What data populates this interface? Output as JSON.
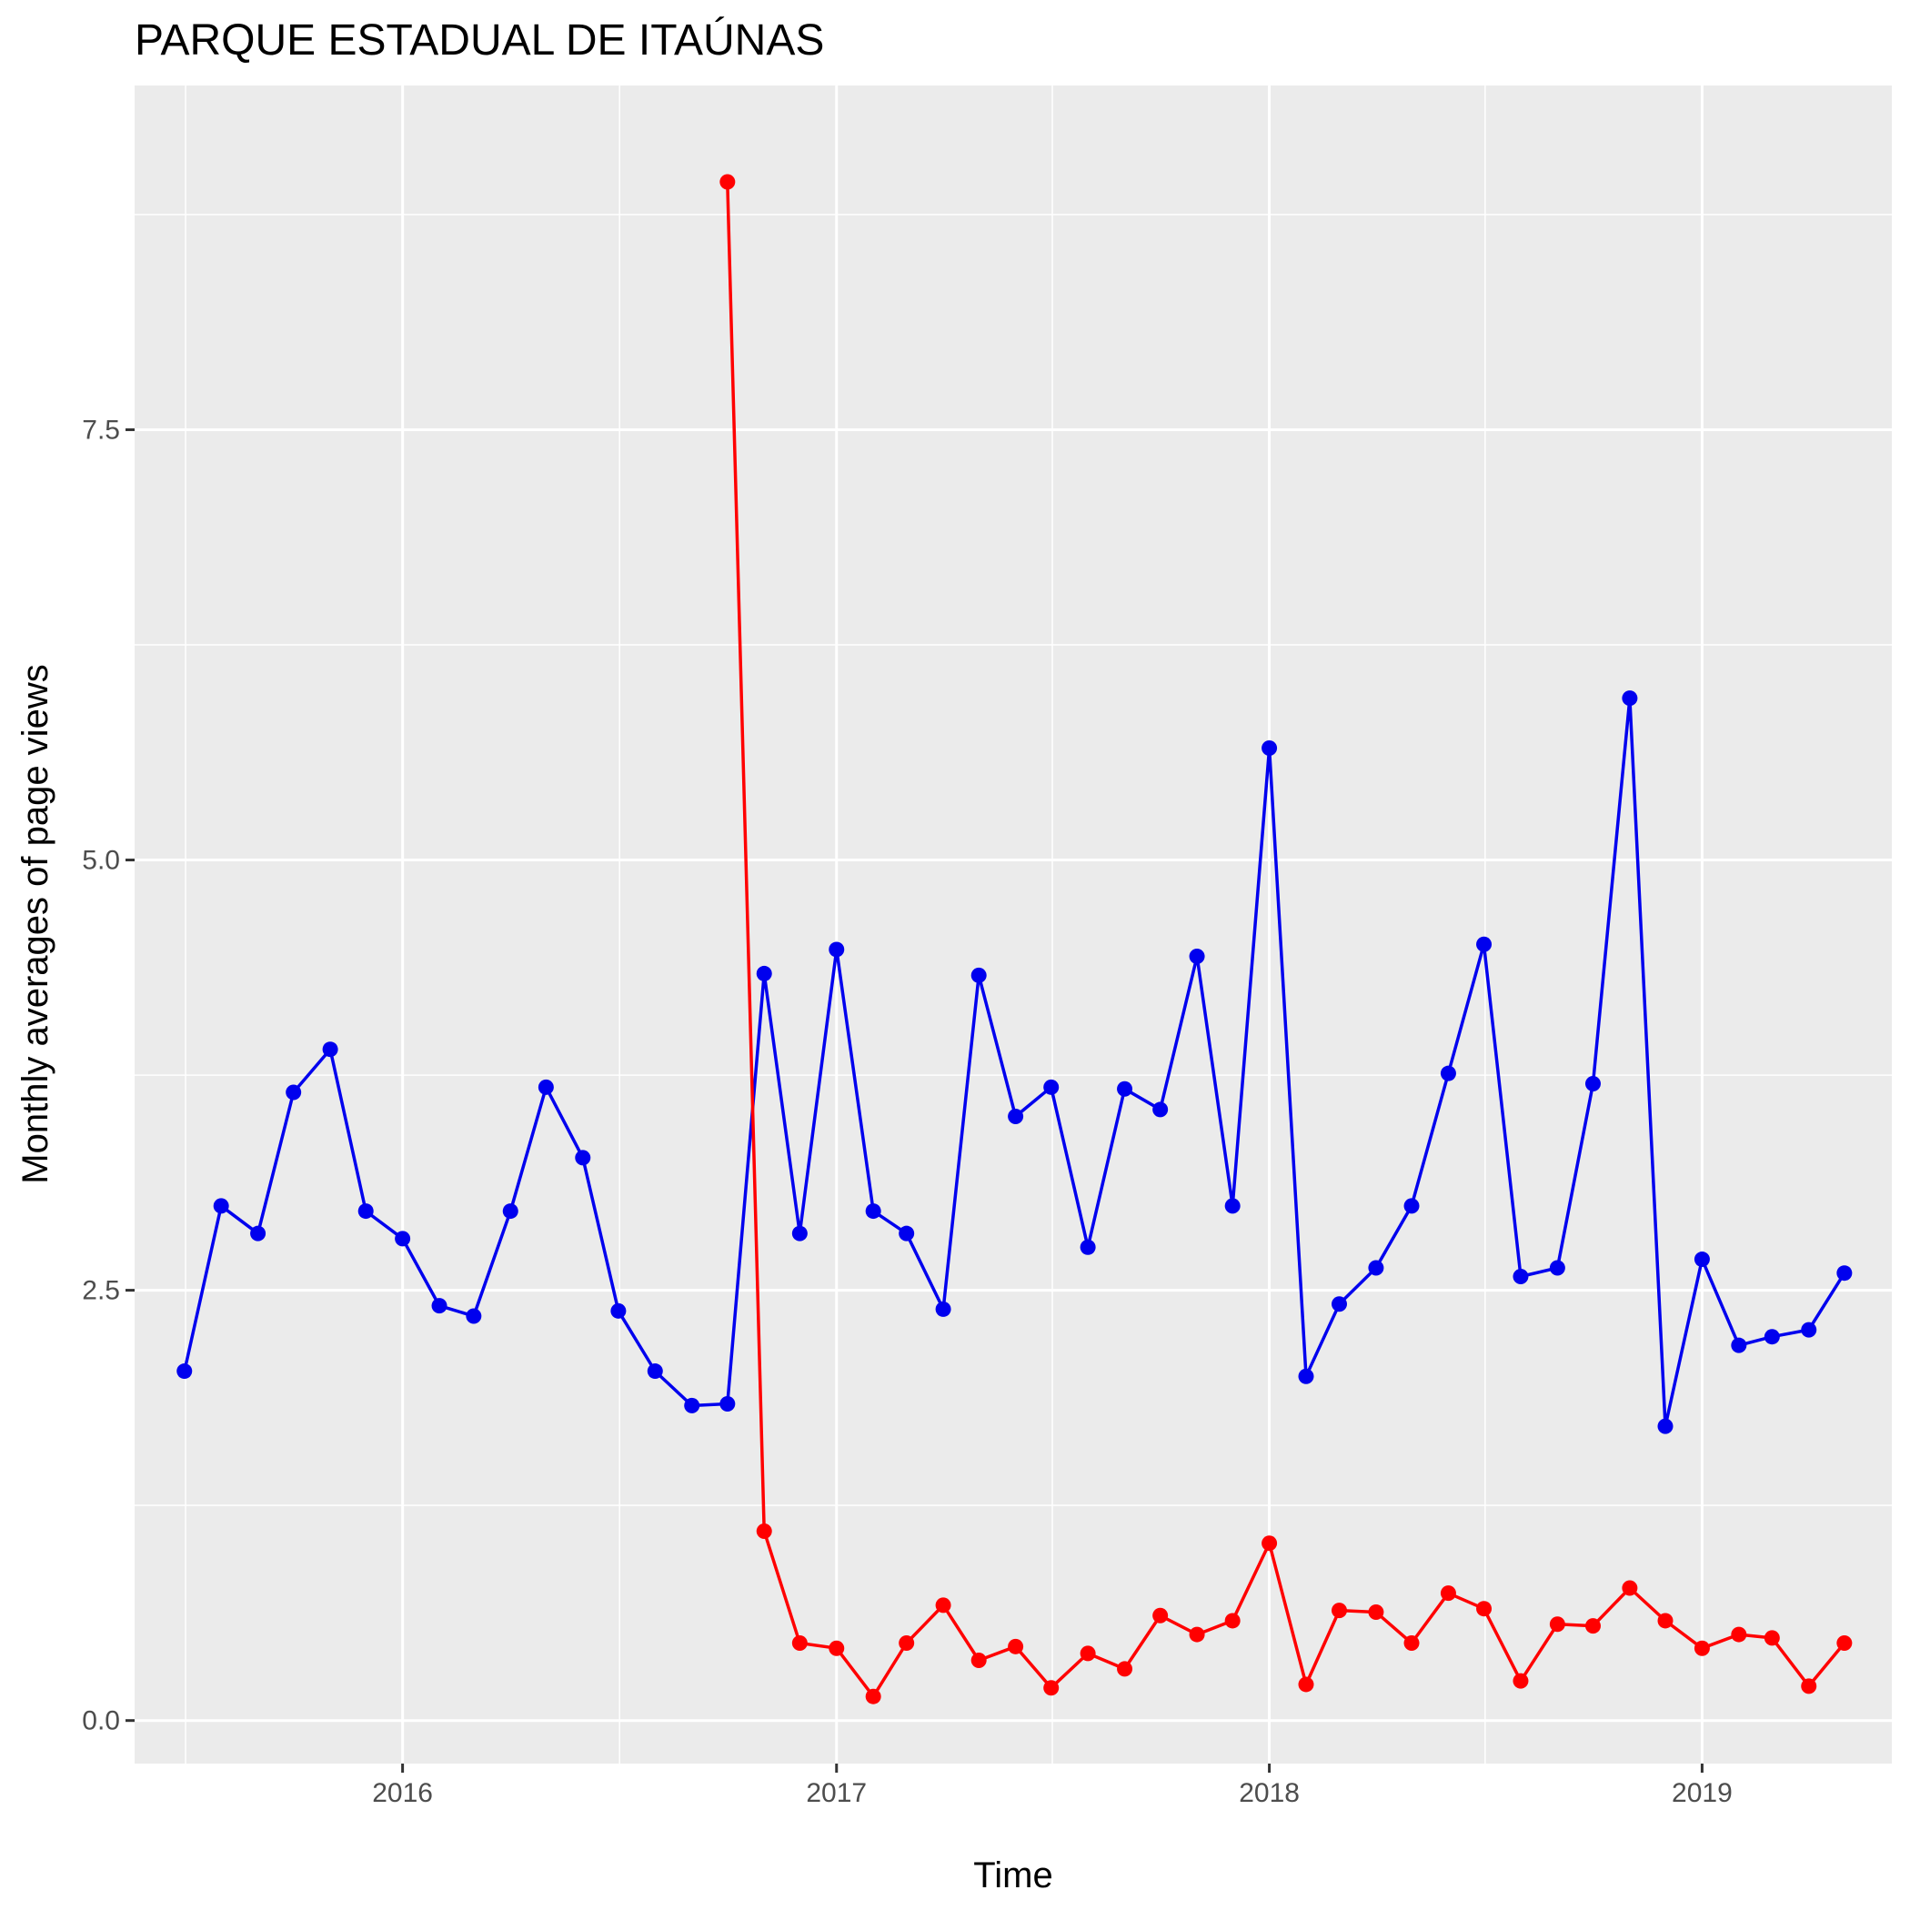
{
  "chart_data": {
    "type": "line",
    "title": "PARQUE ESTADUAL DE ITAÚNAS",
    "xlabel": "Time",
    "ylabel": "Monthly averages of page views",
    "x_ticks": [
      "2016",
      "2017",
      "2018",
      "2019"
    ],
    "y_ticks": [
      "0.0",
      "2.5",
      "5.0",
      "7.5"
    ],
    "xlim": [
      "2015-05-20",
      "2019-06-10"
    ],
    "ylim": [
      -0.25,
      9.5
    ],
    "grid": true,
    "legend": "none",
    "series": [
      {
        "color": "#0000ee",
        "points": [
          [
            "2015-07-01",
            2.03
          ],
          [
            "2015-08-01",
            2.99
          ],
          [
            "2015-09-01",
            2.83
          ],
          [
            "2015-10-01",
            3.65
          ],
          [
            "2015-11-01",
            3.9
          ],
          [
            "2015-12-01",
            2.96
          ],
          [
            "2016-01-01",
            2.8
          ],
          [
            "2016-02-01",
            2.41
          ],
          [
            "2016-03-01",
            2.35
          ],
          [
            "2016-04-01",
            2.96
          ],
          [
            "2016-05-01",
            3.68
          ],
          [
            "2016-06-01",
            3.27
          ],
          [
            "2016-07-01",
            2.38
          ],
          [
            "2016-08-01",
            2.03
          ],
          [
            "2016-09-01",
            1.83
          ],
          [
            "2016-10-01",
            1.84
          ],
          [
            "2016-11-01",
            4.34
          ],
          [
            "2016-12-01",
            2.83
          ],
          [
            "2017-01-01",
            4.48
          ],
          [
            "2017-02-01",
            2.96
          ],
          [
            "2017-03-01",
            2.83
          ],
          [
            "2017-04-01",
            2.39
          ],
          [
            "2017-05-01",
            4.33
          ],
          [
            "2017-06-01",
            3.51
          ],
          [
            "2017-07-01",
            3.68
          ],
          [
            "2017-08-01",
            2.75
          ],
          [
            "2017-09-01",
            3.67
          ],
          [
            "2017-10-01",
            3.55
          ],
          [
            "2017-11-01",
            4.44
          ],
          [
            "2017-12-01",
            2.99
          ],
          [
            "2018-01-01",
            5.65
          ],
          [
            "2018-02-01",
            2.0
          ],
          [
            "2018-03-01",
            2.42
          ],
          [
            "2018-04-01",
            2.63
          ],
          [
            "2018-05-01",
            2.99
          ],
          [
            "2018-06-01",
            3.76
          ],
          [
            "2018-07-01",
            4.51
          ],
          [
            "2018-08-01",
            2.58
          ],
          [
            "2018-09-01",
            2.63
          ],
          [
            "2018-10-01",
            3.7
          ],
          [
            "2018-11-01",
            5.94
          ],
          [
            "2018-12-01",
            1.71
          ],
          [
            "2019-01-01",
            2.68
          ],
          [
            "2019-02-01",
            2.18
          ],
          [
            "2019-03-01",
            2.23
          ],
          [
            "2019-04-01",
            2.27
          ],
          [
            "2019-05-01",
            2.6
          ]
        ]
      },
      {
        "color": "#ff0000",
        "points": [
          [
            "2016-10-01",
            8.94
          ],
          [
            "2016-11-01",
            1.1
          ],
          [
            "2016-12-01",
            0.45
          ],
          [
            "2017-01-01",
            0.42
          ],
          [
            "2017-02-01",
            0.14
          ],
          [
            "2017-03-01",
            0.45
          ],
          [
            "2017-04-01",
            0.67
          ],
          [
            "2017-05-01",
            0.35
          ],
          [
            "2017-06-01",
            0.43
          ],
          [
            "2017-07-01",
            0.19
          ],
          [
            "2017-08-01",
            0.39
          ],
          [
            "2017-09-01",
            0.3
          ],
          [
            "2017-10-01",
            0.61
          ],
          [
            "2017-11-01",
            0.5
          ],
          [
            "2017-12-01",
            0.58
          ],
          [
            "2018-01-01",
            1.03
          ],
          [
            "2018-02-01",
            0.21
          ],
          [
            "2018-03-01",
            0.64
          ],
          [
            "2018-04-01",
            0.63
          ],
          [
            "2018-05-01",
            0.45
          ],
          [
            "2018-06-01",
            0.74
          ],
          [
            "2018-07-01",
            0.65
          ],
          [
            "2018-08-01",
            0.23
          ],
          [
            "2018-09-01",
            0.56
          ],
          [
            "2018-10-01",
            0.55
          ],
          [
            "2018-11-01",
            0.77
          ],
          [
            "2018-12-01",
            0.58
          ],
          [
            "2019-01-01",
            0.42
          ],
          [
            "2019-02-01",
            0.5
          ],
          [
            "2019-03-01",
            0.48
          ],
          [
            "2019-04-01",
            0.2
          ],
          [
            "2019-05-01",
            0.45
          ]
        ]
      }
    ]
  }
}
